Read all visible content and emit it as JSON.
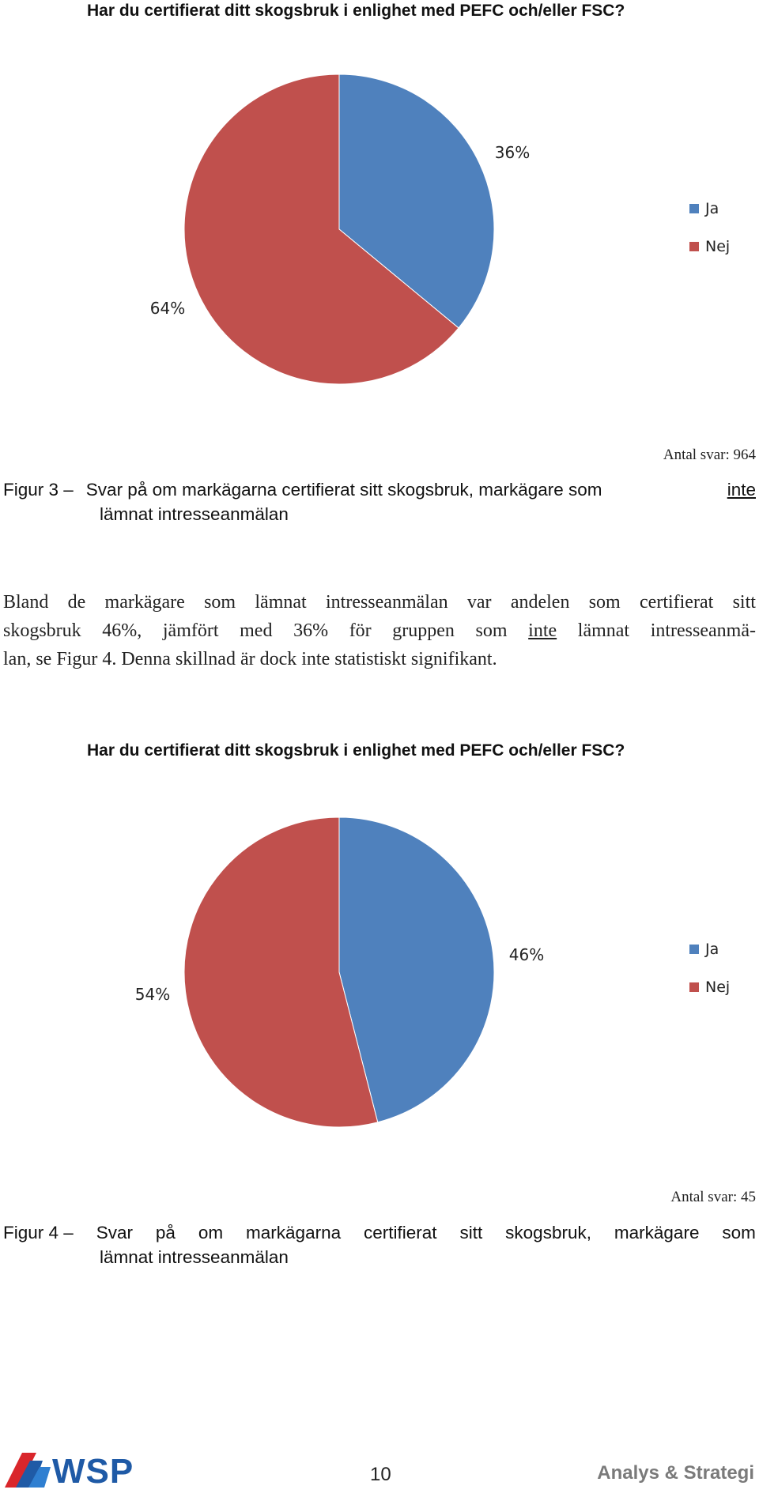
{
  "chart_data": [
    {
      "type": "pie",
      "title": "Har du certifierat ditt skogsbruk i enlighet med PEFC och/eller FSC?",
      "categories": [
        "Ja",
        "Nej"
      ],
      "values": [
        36,
        64
      ],
      "labels": [
        "36%",
        "64%"
      ],
      "colors": [
        "#4f81bd",
        "#c0504d"
      ],
      "legend": "right",
      "legend_entries": [
        "Ja",
        "Nej"
      ]
    },
    {
      "type": "pie",
      "title": "Har du certifierat ditt skogsbruk i enlighet med PEFC och/eller FSC?",
      "categories": [
        "Ja",
        "Nej"
      ],
      "values": [
        46,
        54
      ],
      "labels": [
        "46%",
        "54%"
      ],
      "colors": [
        "#4f81bd",
        "#c0504d"
      ],
      "legend": "right",
      "legend_entries": [
        "Ja",
        "Nej"
      ]
    }
  ],
  "figure3": {
    "answers": "Antal svar: 964",
    "caption_prefix": "Figur 3 –",
    "caption_part1": "Svar på om markägarna certifierat sitt skogsbruk, markägare som",
    "caption_underlined": "inte",
    "caption_line2": "lämnat intresseanmälan"
  },
  "body": {
    "line1": [
      "Bland",
      "de",
      "markägare",
      "som",
      "lämnat",
      "intresseanmälan",
      "var",
      "andelen",
      "som",
      "certifierat",
      "sitt"
    ],
    "line2_before": [
      "skogsbruk",
      "46%,",
      "jämfört",
      "med",
      "36%",
      "för",
      "gruppen",
      "som"
    ],
    "line2_underlined": "inte",
    "line2_after": [
      "lämnat",
      "intresseanmä-"
    ],
    "line3": "lan, se Figur 4. Denna skillnad är dock inte statistiskt signifikant."
  },
  "figure4": {
    "answers": "Antal svar: 45",
    "caption_prefix": "Figur 4 –",
    "caption_words": [
      "Svar",
      "på",
      "om",
      "markägarna",
      "certifierat",
      "sitt",
      "skogsbruk,",
      "markägare",
      "som"
    ],
    "caption_line2": "lämnat intresseanmälan"
  },
  "footer": {
    "logo_text": "WSP",
    "page_number": "10",
    "right_text": "Analys & Strategi"
  }
}
